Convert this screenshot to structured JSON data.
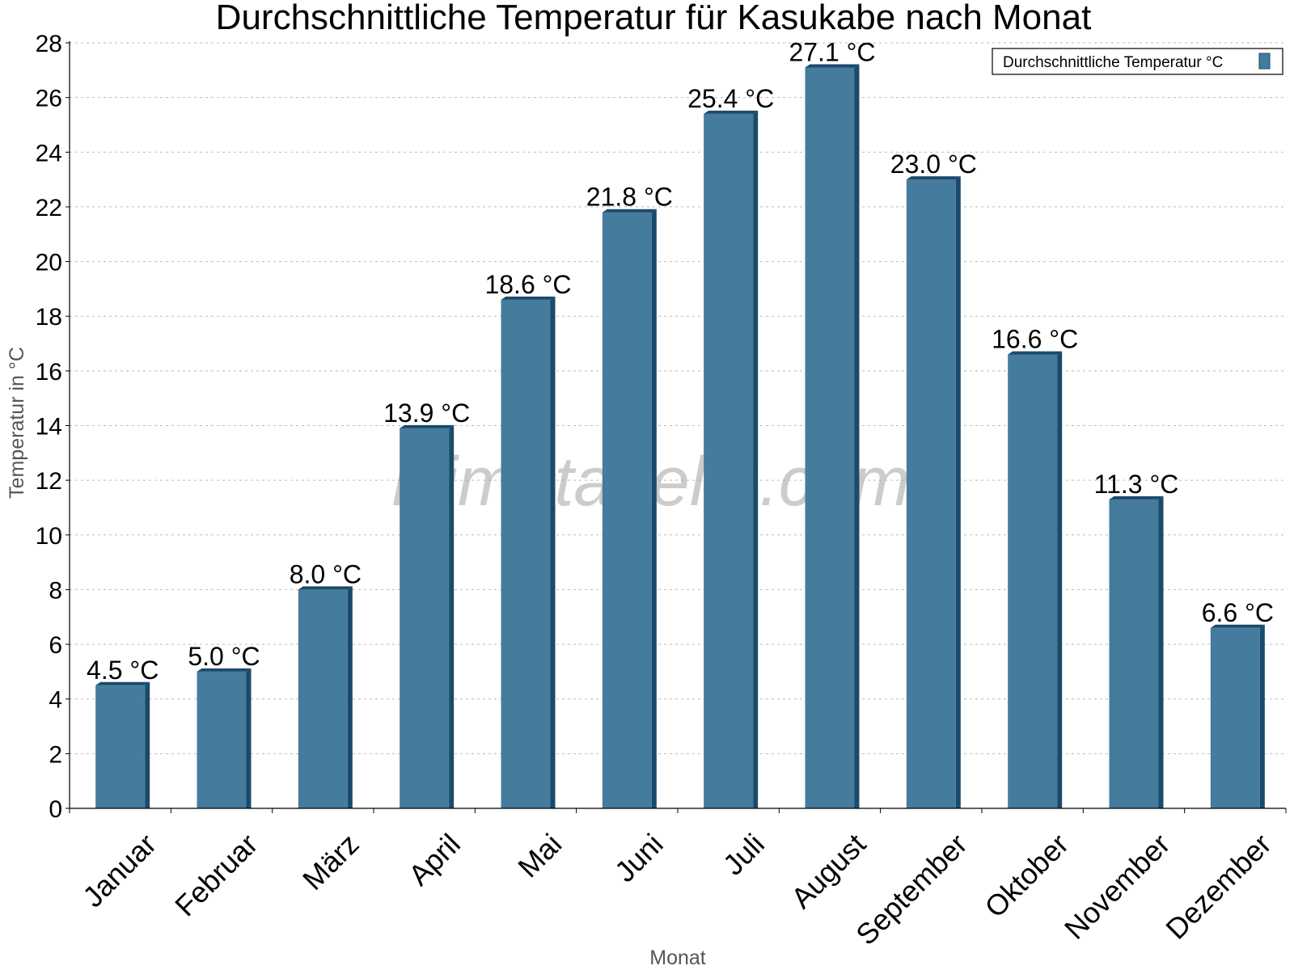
{
  "chart_data": {
    "type": "bar",
    "title": "Durchschnittliche Temperatur für Kasukabe nach Monat",
    "xlabel": "Monat",
    "ylabel": "Temperatur in °C",
    "ylim": [
      0,
      28
    ],
    "yticks": [
      0,
      2,
      4,
      6,
      8,
      10,
      12,
      14,
      16,
      18,
      20,
      22,
      24,
      26,
      28
    ],
    "grid": true,
    "legend_position": "top-right",
    "categories": [
      "Januar",
      "Februar",
      "März",
      "April",
      "Mai",
      "Juni",
      "Juli",
      "August",
      "September",
      "Oktober",
      "November",
      "Dezember"
    ],
    "series": [
      {
        "name": "Durchschnittliche Temperatur °C",
        "color": "#457b9d",
        "values": [
          4.5,
          5.0,
          8.0,
          13.9,
          18.6,
          21.8,
          25.4,
          27.1,
          23.0,
          16.6,
          11.3,
          6.6
        ],
        "labels": [
          "4.5 °C",
          "5.0 °C",
          "8.0 °C",
          "13.9 °C",
          "18.6 °C",
          "21.8 °C",
          "25.4 °C",
          "27.1 °C",
          "23.0 °C",
          "16.6 °C",
          "11.3 °C",
          "6.6 °C"
        ]
      }
    ],
    "watermark": "klimatabelle.com"
  }
}
